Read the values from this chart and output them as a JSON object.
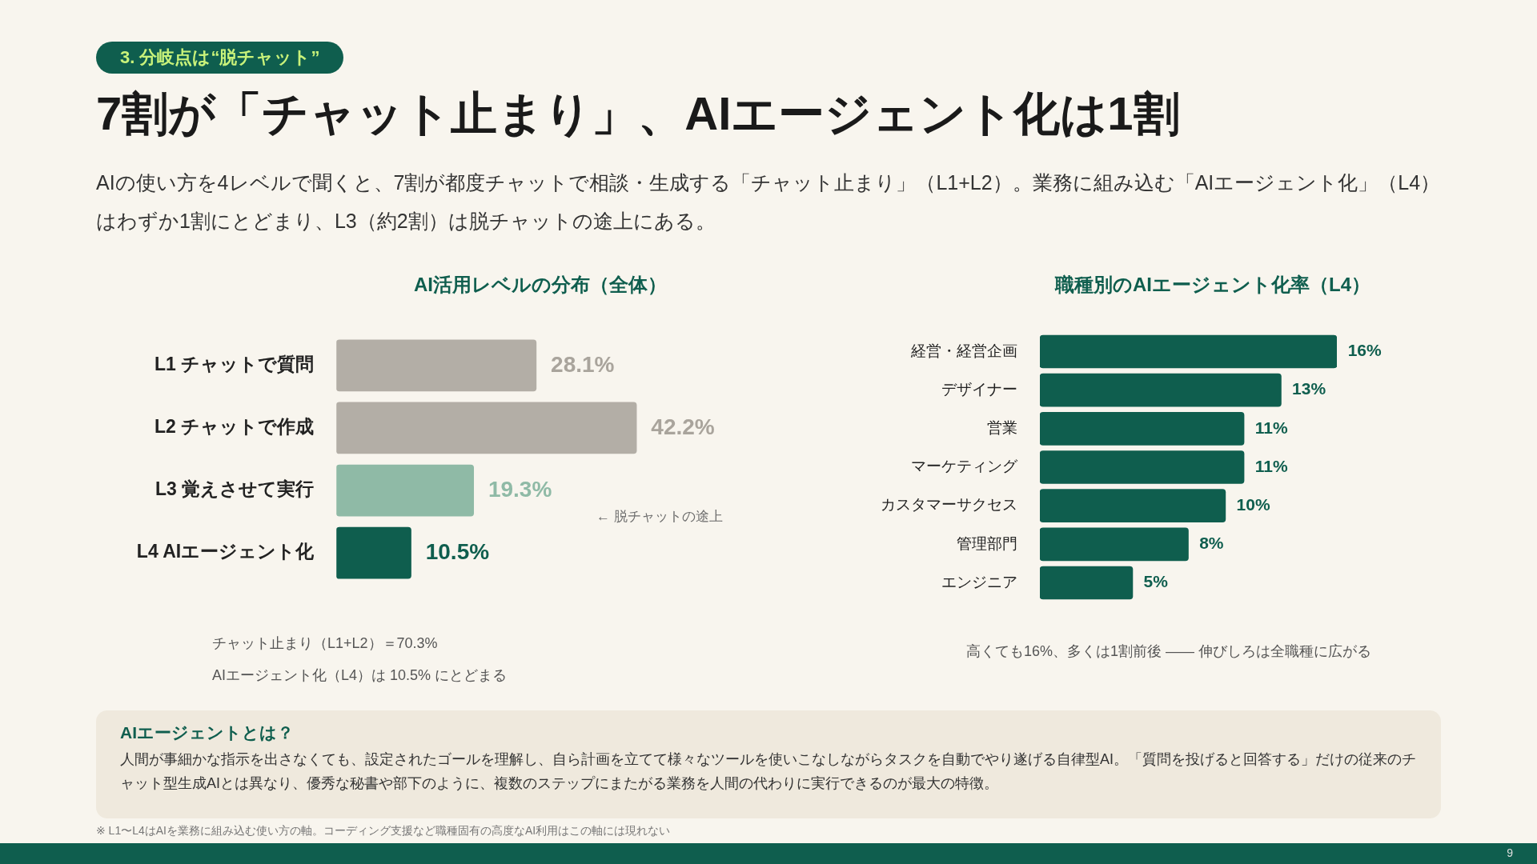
{
  "chart_data": [
    {
      "type": "other",
      "title": "7割が「チャット止まり」、AIエージェント化は1割",
      "subtitle": "AIの使い方を4レベルで聞くと、7割が都度チャットで相談・生成する「チャット止まり」（L1+L2）。業務に組み込む「AIエージェント化」（L4）はわずか1割にとどまり、L3（約2割）は脱チャットの途上にある。",
      "annotations": [
        "3. 分岐点は“脱チャット”"
      ]
    },
    {
      "type": "bar",
      "orientation": "horizontal",
      "title": "AI活用レベルの分布（全体）",
      "categories": [
        "L1 チャットで質問",
        "L2 チャットで作成",
        "L3 覚えさせて実行",
        "L4 AIエージェント化"
      ],
      "values": [
        28.1,
        42.2,
        19.3,
        10.5
      ],
      "value_labels": [
        "28.1%",
        "42.2%",
        "19.3%",
        "10.5%"
      ],
      "colors": [
        "#b3aea6",
        "#b3aea6",
        "#8fbaa6",
        "#0f5e4e"
      ],
      "annotations": [
        "← 脱チャットの途上",
        "チャット止まり（L1+L2）＝70.3%",
        "AIエージェント化（L4）は 10.5% にとどまる"
      ]
    },
    {
      "type": "bar",
      "orientation": "horizontal",
      "title": "職種別のAIエージェント化率（L4）",
      "categories": [
        "経営・経営企画",
        "デザイナー",
        "営業",
        "マーケティング",
        "カスタマーサクセス",
        "管理部門",
        "エンジニア"
      ],
      "values": [
        16,
        13,
        11,
        11,
        10,
        8,
        5
      ],
      "value_labels": [
        "16%",
        "13%",
        "11%",
        "11%",
        "10%",
        "8%",
        "5%"
      ],
      "color": "#0f5e4e",
      "annotations": [
        "高くても16%、多くは1割前後 —— 伸びしろは全職種に広がる"
      ]
    },
    {
      "type": "other",
      "title": "AIエージェントとは？",
      "annotations": [
        "人間が事細かな指示を出さなくても、設定されたゴールを理解し、自ら計画を立てて様々なツールを使いこなしながらタスクを自動でやり遂げる自律型AI。「質問を投げると回答する」だけの従来のチャット型生成AIとは異なり、優秀な秘書や部下のように、複数のステップにまたがる業務を人間の代わりに実行できるのが最大の特徴。",
        "※ L1〜L4はAIを業務に組み込む使い方の軸。コーディング支援など職種固有の高度なAI利用はこの軸には現れない",
        "9"
      ]
    }
  ]
}
